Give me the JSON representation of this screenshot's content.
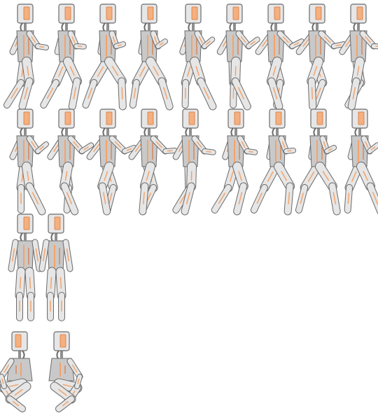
{
  "sprite_sheet": {
    "background": "#ffffff",
    "palette": {
      "body_light": "#e6e6e6",
      "body_mid": "#c9c9c9",
      "body_dark": "#8f8f8f",
      "outline": "#6b6b6b",
      "accent": "#f2a36b",
      "accent_dark": "#d9773f",
      "visor": "#f4b07e"
    },
    "rows": [
      {
        "name": "run-cycle-a",
        "frame_count": 9,
        "pose": "run",
        "facing": "right"
      },
      {
        "name": "run-cycle-b",
        "frame_count": 9,
        "pose": "run",
        "facing": "right"
      },
      {
        "name": "idle",
        "frame_count": 2,
        "pose": "stand",
        "facing": "front"
      },
      {
        "name": "crouch",
        "frame_count": 2,
        "pose": "crouch",
        "facing": "mirrored"
      }
    ]
  }
}
